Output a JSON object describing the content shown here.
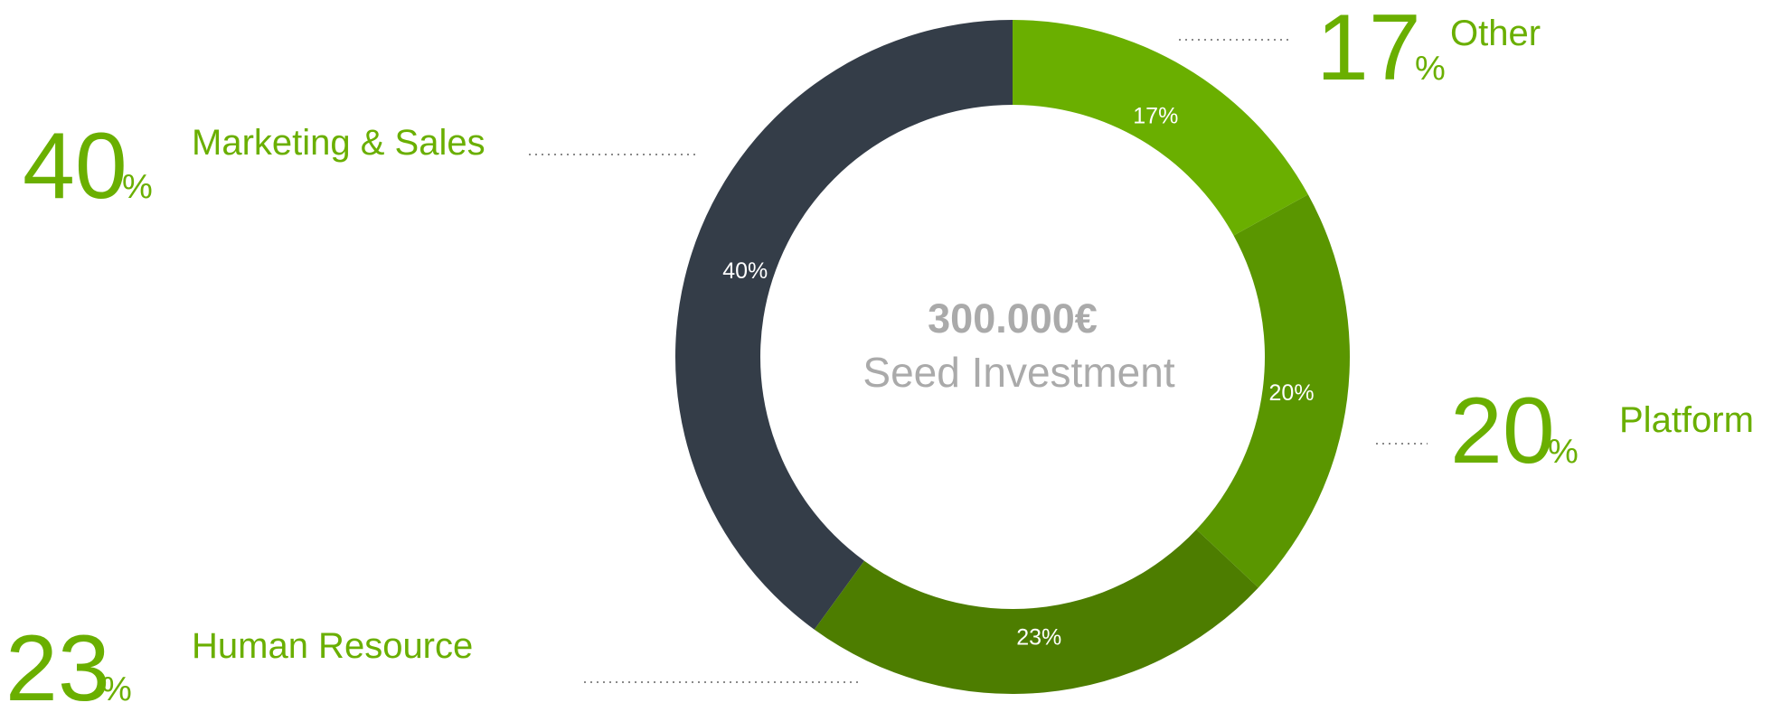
{
  "chart_data": {
    "type": "donut",
    "center_title": "300.000€",
    "center_subtitle": "Seed Investment",
    "categories": [
      "Other",
      "Platform",
      "Human Resource",
      "Marketing & Sales"
    ],
    "values": [
      17,
      20,
      23,
      40
    ],
    "value_labels": [
      "17%",
      "20%",
      "23%",
      "40%"
    ],
    "unit": "%",
    "colors": [
      "#6aaf00",
      "#5a9600",
      "#4d7d00",
      "#343d48"
    ],
    "label_color": "#6aaf00"
  }
}
